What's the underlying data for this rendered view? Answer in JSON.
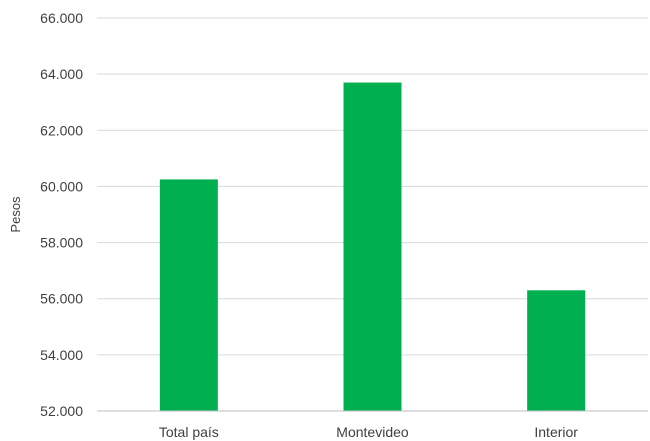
{
  "chart_data": {
    "type": "bar",
    "title": "",
    "xlabel": "",
    "ylabel": "Pesos",
    "categories": [
      "Total país",
      "Montevideo",
      "Interior"
    ],
    "values": [
      60250,
      63700,
      56300
    ],
    "ylim": [
      52000,
      66000
    ],
    "yticks": [
      52000,
      54000,
      56000,
      58000,
      60000,
      62000,
      64000,
      66000
    ],
    "ytick_labels": [
      "52.000",
      "54.000",
      "56.000",
      "58.000",
      "60.000",
      "62.000",
      "64.000",
      "66.000"
    ],
    "grid": true,
    "legend": "none",
    "bar_color": "#00b050"
  }
}
